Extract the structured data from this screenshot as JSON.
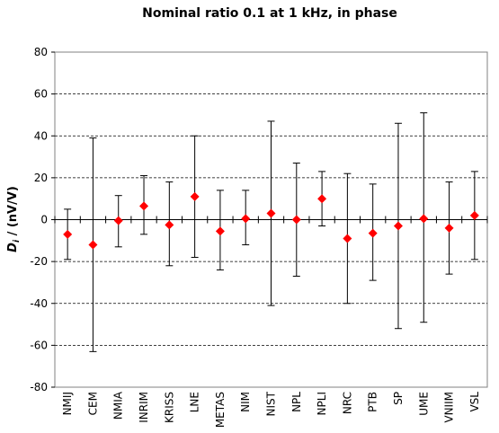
{
  "chart_data": {
    "type": "scatter",
    "title": "Nominal ratio 0.1 at 1 kHz, in phase",
    "ylabel": {
      "symbol": "D",
      "subscript": "i",
      "unit_text": " / (nV/V)"
    },
    "ylim": [
      -80,
      80
    ],
    "yticks": [
      80,
      60,
      40,
      20,
      0,
      -20,
      -40,
      -60,
      -80
    ],
    "gridlines": [
      60,
      40,
      20,
      -20,
      -40,
      -60
    ],
    "grid": "dashed horizontal",
    "marker_color": "#ff0000",
    "errorbar_color": "#000000",
    "categories": [
      "NMIJ",
      "CEM",
      "NMIA",
      "INRIM",
      "KRISS",
      "LNE",
      "METAS",
      "NIM",
      "NIST",
      "NPL",
      "NPLI",
      "NRC",
      "PTB",
      "SP",
      "UME",
      "VNIIM",
      "VSL"
    ],
    "values": [
      -7,
      -12,
      -0.5,
      6.5,
      -2.5,
      11,
      -5.5,
      0.5,
      3,
      0,
      10,
      -9,
      -6.5,
      -3,
      0.5,
      -4,
      2
    ],
    "upper": [
      5,
      39,
      11.5,
      21,
      18,
      40,
      14,
      14,
      47,
      27,
      23,
      22,
      17,
      46,
      51,
      18,
      23
    ],
    "lower": [
      -19,
      -63,
      -13,
      -7,
      -22,
      -18,
      -24,
      -12,
      -41,
      -27,
      -3,
      -40,
      -29,
      -52,
      -49,
      -26,
      -19
    ]
  }
}
